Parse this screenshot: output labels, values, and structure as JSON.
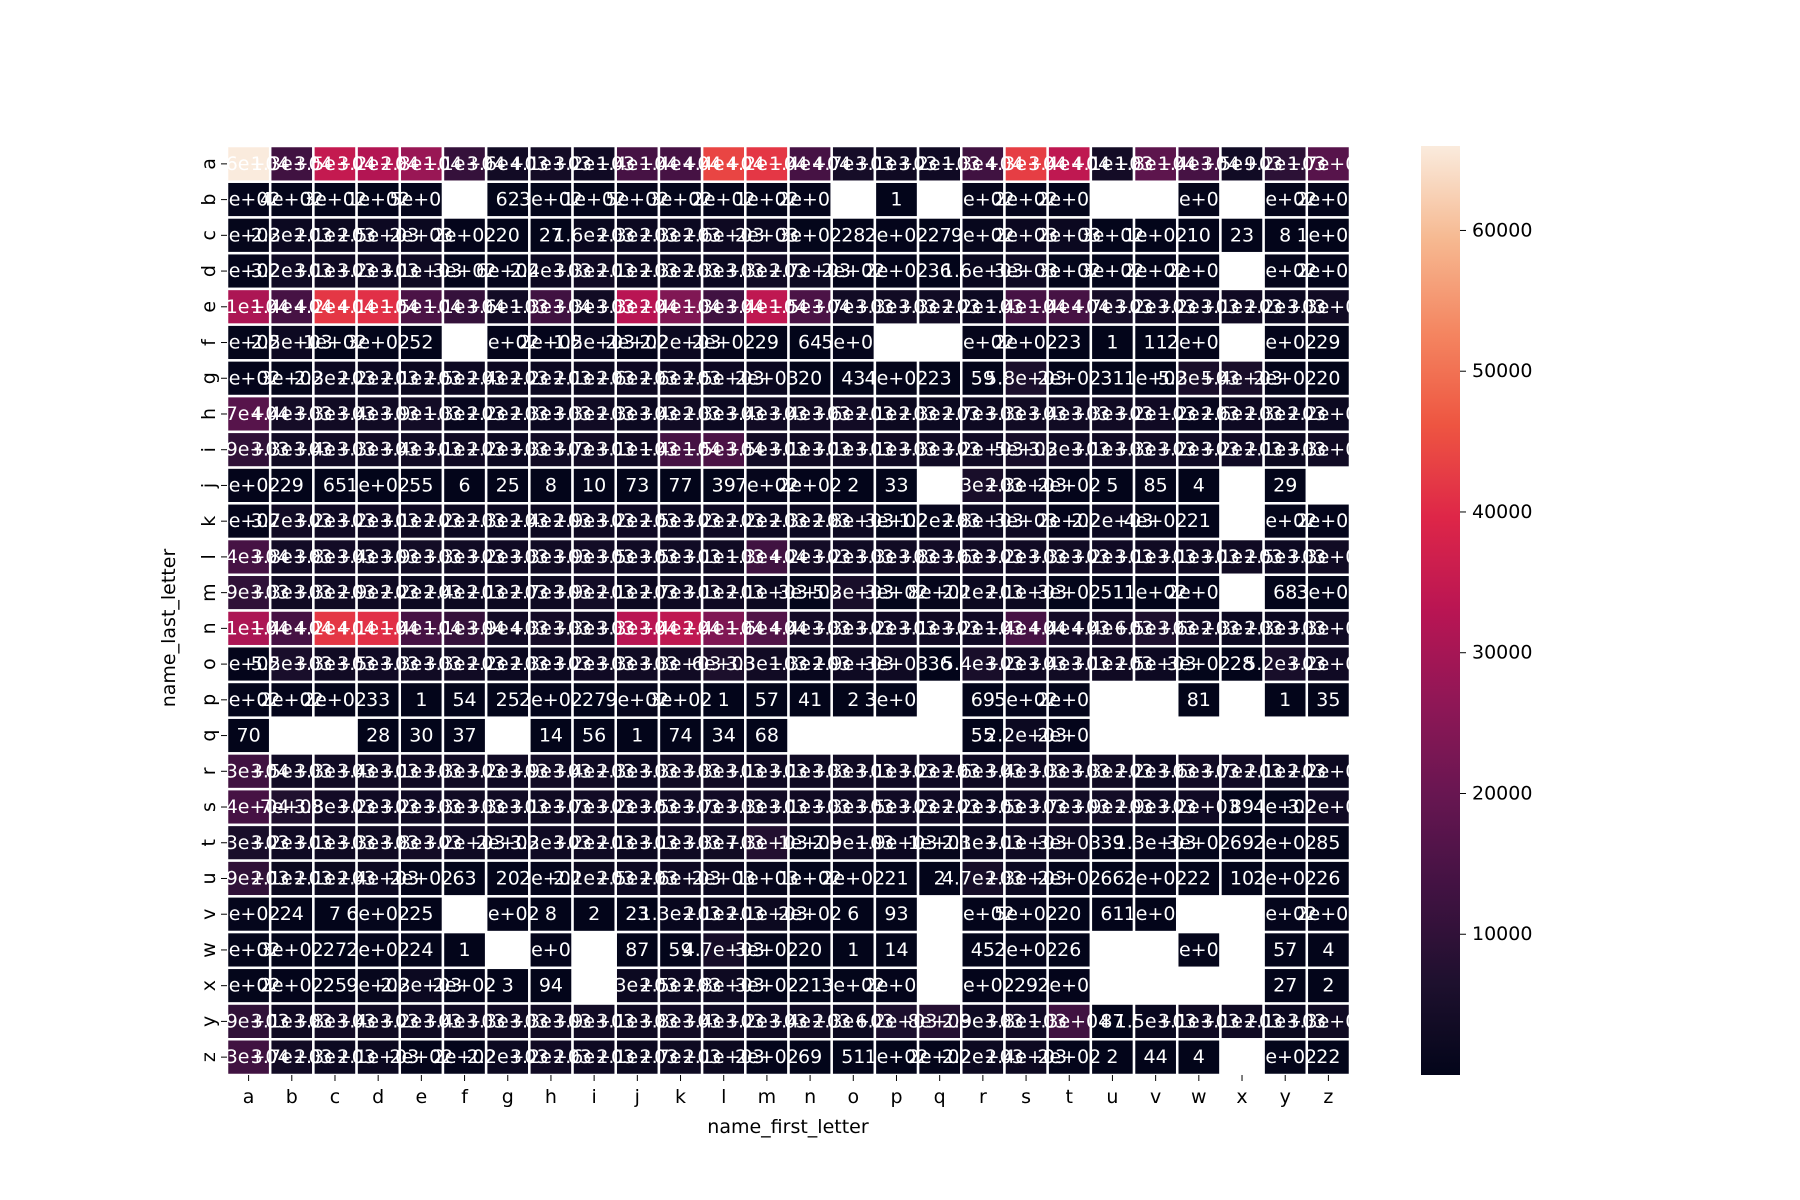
{
  "chart_data": {
    "type": "heatmap",
    "xlabel": "name_first_letter",
    "ylabel": "name_last_letter",
    "x_categories": [
      "a",
      "b",
      "c",
      "d",
      "e",
      "f",
      "g",
      "h",
      "i",
      "j",
      "k",
      "l",
      "m",
      "n",
      "o",
      "p",
      "q",
      "r",
      "s",
      "t",
      "u",
      "v",
      "w",
      "x",
      "y",
      "z"
    ],
    "y_categories": [
      "a",
      "b",
      "c",
      "d",
      "e",
      "f",
      "g",
      "h",
      "i",
      "j",
      "k",
      "l",
      "m",
      "n",
      "o",
      "p",
      "q",
      "r",
      "s",
      "t",
      "u",
      "v",
      "w",
      "x",
      "y",
      "z"
    ],
    "colorbar": {
      "ticks": [
        10000,
        20000,
        30000,
        40000,
        50000,
        60000
      ],
      "tick_labels": [
        "10000",
        "20000",
        "30000",
        "40000",
        "50000",
        "60000"
      ],
      "range": [
        0,
        66000
      ],
      "colormap": "rocket"
    },
    "annotation_format": "2 significant figures",
    "missing_cells_blank": true,
    "rows": [
      [
        66000,
        13000,
        35000,
        32000,
        28000,
        11000,
        3600,
        4100,
        3200,
        14000,
        14000,
        44000,
        42000,
        14000,
        4700,
        3100,
        3200,
        13000,
        43000,
        34000,
        4100,
        18000,
        14000,
        3500,
        9200,
        17000
      ],
      [
        200,
        400,
        300,
        100,
        500,
        null,
        62,
        300,
        100,
        500,
        300,
        200,
        100,
        200,
        null,
        1,
        null,
        700,
        200,
        200,
        null,
        null,
        400,
        null,
        400,
        200
      ],
      [
        400,
        2300,
        2100,
        2500,
        2000,
        200,
        20,
        27,
        1600,
        2300,
        2300,
        2600,
        2000,
        300,
        28,
        200,
        27,
        900,
        2000,
        2000,
        300,
        100,
        10,
        23,
        8,
        100
      ],
      [
        200,
        3200,
        3100,
        3200,
        3100,
        300,
        600,
        2400,
        3300,
        2100,
        2300,
        2300,
        3300,
        2700,
        200,
        200,
        36,
        1600,
        3000,
        300,
        300,
        200,
        200,
        null,
        400,
        200
      ],
      [
        31000,
        14000,
        42000,
        41000,
        15000,
        11000,
        3600,
        13000,
        3300,
        33000,
        24000,
        13000,
        34000,
        15000,
        3700,
        3300,
        3300,
        2200,
        14000,
        14000,
        4700,
        3200,
        3200,
        3100,
        2200,
        3300
      ],
      [
        300,
        2500,
        100,
        300,
        52,
        null,
        200,
        200,
        1500,
        200,
        2200,
        200,
        29,
        64,
        500,
        null,
        null,
        400,
        200,
        23,
        1,
        11,
        200,
        null,
        200,
        29
      ],
      [
        200,
        300,
        2300,
        2200,
        2100,
        2500,
        2400,
        2200,
        2100,
        2600,
        2600,
        2500,
        2000,
        20,
        43,
        400,
        23,
        59,
        5800,
        200,
        31,
        100,
        5300,
        5400,
        200,
        20
      ],
      [
        17000,
        4400,
        3300,
        3400,
        3900,
        1300,
        2200,
        2300,
        3300,
        2300,
        3400,
        2300,
        3400,
        3400,
        3600,
        2100,
        2300,
        2700,
        3300,
        3400,
        3300,
        3200,
        1200,
        2600,
        2300,
        2200
      ],
      [
        9900,
        3300,
        3400,
        3300,
        3400,
        3100,
        2200,
        3300,
        3700,
        3100,
        14000,
        14900,
        3500,
        3100,
        3100,
        3100,
        3300,
        3200,
        5000,
        3200,
        3100,
        3300,
        3200,
        3200,
        2100,
        3300
      ],
      [
        200,
        29,
        65,
        100,
        55,
        6,
        25,
        8,
        10,
        73,
        77,
        39,
        700,
        200,
        2,
        33,
        null,
        5300,
        2300,
        200,
        5,
        85,
        4,
        null,
        29,
        null
      ],
      [
        200,
        3700,
        3200,
        3200,
        3100,
        2200,
        2300,
        2400,
        2900,
        3200,
        2500,
        3200,
        2200,
        2300,
        2800,
        300,
        1200,
        2800,
        3000,
        200,
        2200,
        400,
        21,
        null,
        400,
        200
      ],
      [
        14000,
        3800,
        3800,
        3400,
        3900,
        3300,
        3200,
        3300,
        3900,
        3500,
        3500,
        3100,
        13000,
        4200,
        3200,
        3300,
        3800,
        3600,
        3200,
        3300,
        3200,
        3100,
        3100,
        3100,
        2500,
        3300
      ],
      [
        9900,
        3300,
        3300,
        2900,
        2200,
        2400,
        2100,
        2700,
        3900,
        2100,
        2700,
        3100,
        2100,
        300,
        5300,
        300,
        800,
        2100,
        2100,
        300,
        51,
        100,
        200,
        null,
        68,
        300
      ],
      [
        31000,
        14000,
        42000,
        41000,
        14000,
        11000,
        3900,
        4300,
        3300,
        33000,
        34000,
        24000,
        16000,
        4400,
        3300,
        3200,
        3100,
        3200,
        14000,
        4400,
        4400,
        6500,
        3600,
        2300,
        2300,
        3300
      ],
      [
        200,
        5500,
        3300,
        3500,
        3300,
        3300,
        2200,
        2300,
        3200,
        3300,
        3300,
        6000,
        3300,
        1300,
        2900,
        3000,
        36,
        5400,
        3200,
        3400,
        3100,
        2500,
        300,
        28,
        5200,
        3200
      ],
      [
        300,
        200,
        200,
        33,
        1,
        54,
        25,
        200,
        27,
        900,
        300,
        1,
        57,
        41,
        2,
        300,
        null,
        69,
        500,
        200,
        null,
        null,
        81,
        null,
        1,
        35
      ],
      [
        70,
        null,
        null,
        28,
        30,
        37,
        null,
        14,
        56,
        1,
        74,
        34,
        68,
        null,
        null,
        null,
        null,
        55,
        2200,
        200,
        null,
        null,
        null,
        null,
        null,
        null
      ],
      [
        13000,
        3500,
        3300,
        3400,
        3100,
        3300,
        3200,
        3900,
        3400,
        2300,
        3300,
        3300,
        3100,
        3100,
        3300,
        3100,
        3200,
        2600,
        3400,
        3300,
        3300,
        2200,
        3600,
        3700,
        2100,
        2200
      ],
      [
        14000,
        7000,
        3800,
        3200,
        3200,
        3300,
        3300,
        3100,
        3700,
        3200,
        3500,
        3700,
        3300,
        3100,
        3300,
        3500,
        3200,
        2200,
        3500,
        3700,
        3900,
        2900,
        3200,
        89,
        400,
        3200
      ],
      [
        5300,
        3200,
        3100,
        3300,
        3800,
        3200,
        2000,
        3200,
        3200,
        2100,
        3100,
        3300,
        7300,
        1000,
        2900,
        1900,
        1000,
        2100,
        3100,
        3000,
        39,
        1300,
        300,
        69,
        200,
        85
      ],
      [
        9900,
        2100,
        2100,
        2400,
        200,
        63,
        20,
        200,
        2100,
        2500,
        2600,
        2000,
        1000,
        100,
        200,
        21,
        2,
        4700,
        2300,
        200,
        66,
        200,
        22,
        10,
        200,
        26
      ],
      [
        500,
        24,
        7,
        600,
        25,
        null,
        200,
        8,
        2,
        23,
        1300,
        2100,
        2100,
        200,
        6,
        93,
        null,
        200,
        500,
        20,
        61,
        100,
        null,
        null,
        500,
        200
      ],
      [
        300,
        300,
        27,
        200,
        24,
        1,
        null,
        200,
        null,
        87,
        59,
        4700,
        300,
        20,
        1,
        14,
        null,
        45,
        200,
        26,
        null,
        null,
        400,
        null,
        57,
        4
      ],
      [
        300,
        200,
        25,
        900,
        2300,
        200,
        3,
        94,
        null,
        2300,
        2500,
        2800,
        300,
        21,
        300,
        200,
        null,
        200,
        29,
        200,
        null,
        null,
        null,
        null,
        27,
        2
      ],
      [
        9900,
        3100,
        3800,
        3400,
        3200,
        3400,
        3300,
        3300,
        3900,
        3100,
        3800,
        3400,
        3200,
        3400,
        2300,
        6200,
        8000,
        2900,
        3800,
        13000,
        87,
        1500,
        3100,
        3100,
        2100,
        3300
      ],
      [
        13000,
        3700,
        2300,
        2100,
        200,
        200,
        2200,
        3200,
        2600,
        2100,
        2700,
        2100,
        200,
        69,
        51,
        100,
        200,
        2200,
        2400,
        200,
        2,
        44,
        4,
        null,
        300,
        22
      ]
    ]
  }
}
